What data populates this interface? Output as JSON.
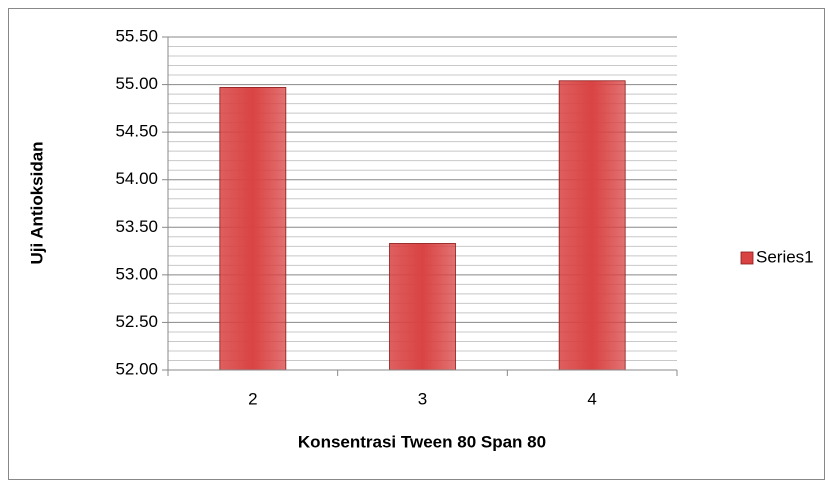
{
  "chart_data": {
    "type": "bar",
    "x_label": "Konsentrasi Tween 80 Span 80",
    "y_label": "Uji Antioksidan",
    "categories": [
      "2",
      "3",
      "4"
    ],
    "series": [
      {
        "name": "Series1",
        "color": "#d94343",
        "values": [
          54.97,
          53.33,
          55.04
        ]
      }
    ],
    "ylim": [
      52,
      55.5
    ],
    "yticks": [
      {
        "value": 52,
        "label": "52.00"
      },
      {
        "value": 52.5,
        "label": "52.50"
      },
      {
        "value": 53,
        "label": "53.00"
      },
      {
        "value": 53.5,
        "label": "53.50"
      },
      {
        "value": 54,
        "label": "54.00"
      },
      {
        "value": 54.5,
        "label": "54.50"
      },
      {
        "value": 55,
        "label": "55.00"
      },
      {
        "value": 55.5,
        "label": "55.50"
      }
    ],
    "minor_yticks": [
      52.1,
      52.2,
      52.3,
      52.4,
      52.6,
      52.7,
      52.8,
      52.9,
      53.1,
      53.2,
      53.3,
      53.4,
      53.6,
      53.7,
      53.8,
      53.9,
      54.1,
      54.2,
      54.3,
      54.4,
      54.6,
      54.7,
      54.8,
      54.9,
      55.1,
      55.2,
      55.3,
      55.4
    ],
    "grid": true,
    "legend": "right"
  }
}
